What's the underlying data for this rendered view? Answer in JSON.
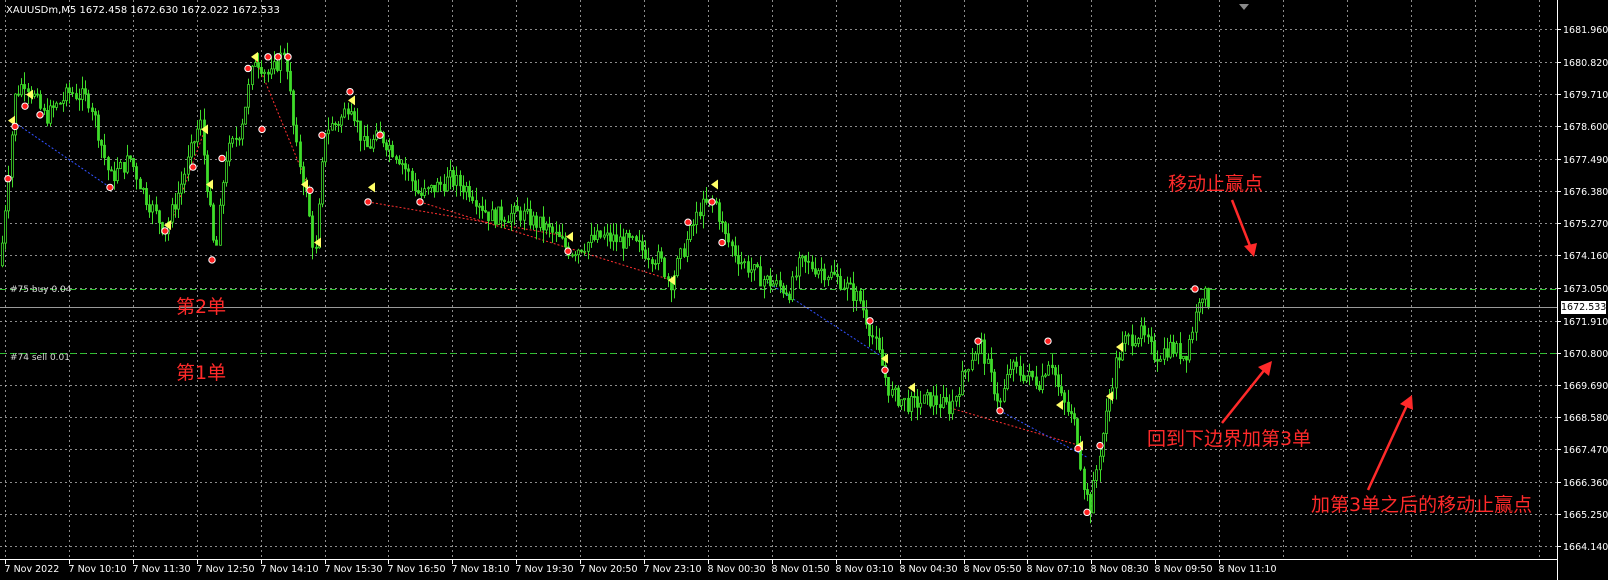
{
  "chart": {
    "symbol_info": "XAUUSDm,M5  1672.458 1672.630 1672.022 1672.533",
    "current_price": "1672.533",
    "price_axis": [
      "1681.960",
      "1680.820",
      "1679.710",
      "1678.600",
      "1677.490",
      "1676.380",
      "1675.270",
      "1674.160",
      "1673.050",
      "1671.910",
      "1670.800",
      "1669.690",
      "1668.580",
      "1667.470",
      "1666.360",
      "1665.250",
      "1664.140"
    ],
    "time_axis": [
      "7 Nov 2022",
      "7 Nov 10:10",
      "7 Nov 11:30",
      "7 Nov 12:50",
      "7 Nov 14:10",
      "7 Nov 15:30",
      "7 Nov 16:50",
      "7 Nov 18:10",
      "7 Nov 19:30",
      "7 Nov 20:50",
      "7 Nov 23:10",
      "8 Nov 00:30",
      "8 Nov 01:50",
      "8 Nov 03:10",
      "8 Nov 04:30",
      "8 Nov 05:50",
      "8 Nov 07:10",
      "8 Nov 08:30",
      "8 Nov 09:50",
      "8 Nov 11:10"
    ],
    "colors": {
      "candle": "#3fdc2a",
      "grid": "#c8c8c8",
      "order_line": "#2fbf2f",
      "annotation": "#ff2a2a",
      "background": "#000000"
    }
  },
  "orders": [
    {
      "label": "#75 buy 0.04",
      "price": 1673.0
    },
    {
      "label": "#74 sell 0.01",
      "price": 1670.8
    }
  ],
  "annotations": {
    "order2": "第2单",
    "order1": "第1单",
    "trailing": "移动止赢点",
    "add_third": "回到下边界加第3单",
    "after_third": "加第3单之后的移动止赢点"
  },
  "chart_data": {
    "type": "candlestick",
    "ylim": [
      1664.14,
      1681.96
    ],
    "waypoints": [
      [
        0,
        1673.8
      ],
      [
        15,
        1679.7
      ],
      [
        25,
        1680.2
      ],
      [
        45,
        1678.9
      ],
      [
        70,
        1679.8
      ],
      [
        90,
        1679.5
      ],
      [
        110,
        1676.8
      ],
      [
        130,
        1677.5
      ],
      [
        145,
        1676.2
      ],
      [
        165,
        1675.0
      ],
      [
        180,
        1676.5
      ],
      [
        200,
        1678.8
      ],
      [
        215,
        1674.0
      ],
      [
        225,
        1677.5
      ],
      [
        240,
        1678.5
      ],
      [
        255,
        1681.0
      ],
      [
        270,
        1680.3
      ],
      [
        285,
        1681.3
      ],
      [
        295,
        1678.0
      ],
      [
        305,
        1676.5
      ],
      [
        315,
        1674.0
      ],
      [
        325,
        1678.5
      ],
      [
        340,
        1678.8
      ],
      [
        350,
        1679.5
      ],
      [
        365,
        1677.8
      ],
      [
        380,
        1678.3
      ],
      [
        400,
        1677.5
      ],
      [
        420,
        1676.2
      ],
      [
        450,
        1676.8
      ],
      [
        470,
        1676.4
      ],
      [
        490,
        1675.5
      ],
      [
        520,
        1675.6
      ],
      [
        550,
        1675.0
      ],
      [
        570,
        1674.3
      ],
      [
        600,
        1674.8
      ],
      [
        630,
        1674.6
      ],
      [
        660,
        1674.0
      ],
      [
        670,
        1673.2
      ],
      [
        685,
        1674.5
      ],
      [
        700,
        1675.8
      ],
      [
        715,
        1676.0
      ],
      [
        725,
        1674.8
      ],
      [
        740,
        1674.0
      ],
      [
        760,
        1673.4
      ],
      [
        790,
        1672.9
      ],
      [
        800,
        1673.9
      ],
      [
        820,
        1673.7
      ],
      [
        840,
        1673.3
      ],
      [
        860,
        1672.6
      ],
      [
        870,
        1671.6
      ],
      [
        880,
        1670.6
      ],
      [
        890,
        1669.4
      ],
      [
        910,
        1669.0
      ],
      [
        930,
        1669.2
      ],
      [
        950,
        1668.9
      ],
      [
        970,
        1670.6
      ],
      [
        980,
        1671.2
      ],
      [
        990,
        1670.0
      ],
      [
        1000,
        1669.0
      ],
      [
        1010,
        1670.3
      ],
      [
        1020,
        1670.1
      ],
      [
        1040,
        1669.8
      ],
      [
        1050,
        1670.7
      ],
      [
        1060,
        1669.3
      ],
      [
        1075,
        1668.3
      ],
      [
        1085,
        1666.0
      ],
      [
        1090,
        1665.5
      ],
      [
        1100,
        1667.5
      ],
      [
        1108,
        1669.0
      ],
      [
        1115,
        1670.4
      ],
      [
        1125,
        1671.2
      ],
      [
        1140,
        1671.5
      ],
      [
        1155,
        1670.7
      ],
      [
        1170,
        1671.0
      ],
      [
        1185,
        1670.7
      ],
      [
        1195,
        1672.0
      ],
      [
        1200,
        1673.0
      ],
      [
        1210,
        1672.5
      ]
    ],
    "buy_markers": [
      [
        12,
        1678.8
      ],
      [
        30,
        1679.7
      ],
      [
        205,
        1678.5
      ],
      [
        168,
        1675.2
      ],
      [
        210,
        1676.6
      ],
      [
        255,
        1681.0
      ],
      [
        305,
        1676.6
      ],
      [
        318,
        1674.6
      ],
      [
        352,
        1679.5
      ],
      [
        372,
        1676.5
      ],
      [
        570,
        1674.8
      ],
      [
        672,
        1673.3
      ],
      [
        715,
        1676.6
      ],
      [
        885,
        1670.6
      ],
      [
        912,
        1669.6
      ],
      [
        1060,
        1669.0
      ],
      [
        1080,
        1667.6
      ],
      [
        1110,
        1669.3
      ],
      [
        1120,
        1671.0
      ]
    ],
    "sell_markers": [
      [
        8,
        1676.8
      ],
      [
        15,
        1678.6
      ],
      [
        25,
        1679.3
      ],
      [
        40,
        1679.0
      ],
      [
        110,
        1676.5
      ],
      [
        165,
        1675.0
      ],
      [
        193,
        1677.2
      ],
      [
        212,
        1674.0
      ],
      [
        222,
        1677.5
      ],
      [
        248,
        1680.6
      ],
      [
        262,
        1678.5
      ],
      [
        268,
        1681.0
      ],
      [
        278,
        1681.0
      ],
      [
        288,
        1681.0
      ],
      [
        310,
        1676.4
      ],
      [
        322,
        1678.3
      ],
      [
        350,
        1679.8
      ],
      [
        368,
        1676.0
      ],
      [
        380,
        1678.3
      ],
      [
        420,
        1676.0
      ],
      [
        568,
        1674.3
      ],
      [
        688,
        1675.3
      ],
      [
        712,
        1676.0
      ],
      [
        722,
        1674.6
      ],
      [
        870,
        1671.9
      ],
      [
        885,
        1670.2
      ],
      [
        978,
        1671.2
      ],
      [
        1000,
        1668.8
      ],
      [
        1048,
        1671.2
      ],
      [
        1078,
        1667.5
      ],
      [
        1087,
        1665.3
      ],
      [
        1100,
        1667.6
      ],
      [
        1195,
        1673.0
      ]
    ]
  }
}
